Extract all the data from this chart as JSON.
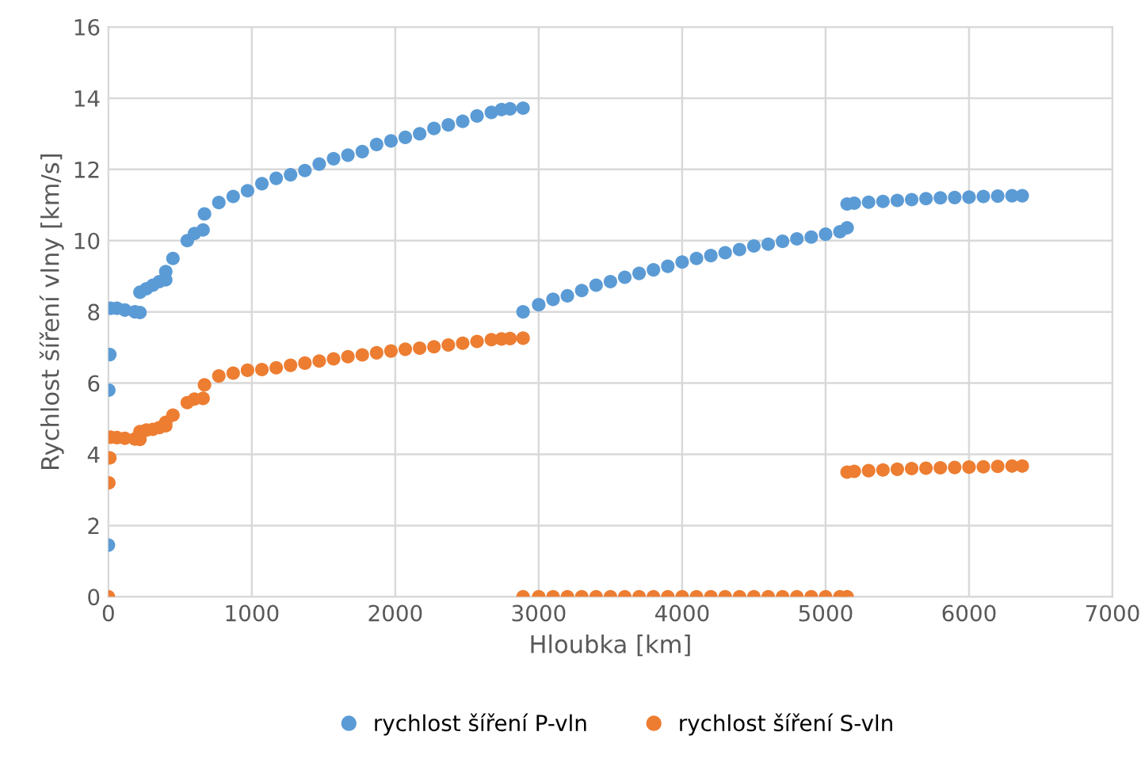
{
  "chart_data": {
    "type": "scatter",
    "xlabel": "Hloubka [km]",
    "ylabel": "Rychlost šíření vlny [km/s]",
    "series": [
      {
        "name": "rychlost šíření P-vln",
        "color": "#5b9bd5",
        "x": [
          0,
          3,
          10,
          15,
          60,
          115,
          185,
          220,
          220,
          265,
          310,
          355,
          400,
          400,
          450,
          550,
          600,
          660,
          670,
          770,
          870,
          970,
          1070,
          1170,
          1270,
          1370,
          1470,
          1570,
          1670,
          1770,
          1870,
          1970,
          2070,
          2170,
          2270,
          2370,
          2470,
          2570,
          2670,
          2741,
          2800,
          2891,
          2891,
          3000,
          3100,
          3200,
          3300,
          3400,
          3500,
          3600,
          3700,
          3800,
          3900,
          4000,
          4100,
          4200,
          4300,
          4400,
          4500,
          4600,
          4700,
          4800,
          4900,
          5000,
          5100,
          5150,
          5150,
          5200,
          5300,
          5400,
          5500,
          5600,
          5700,
          5800,
          5900,
          6000,
          6100,
          6200,
          6300,
          6371
        ],
        "values": [
          1.45,
          5.8,
          6.8,
          8.1,
          8.1,
          8.05,
          8.0,
          7.98,
          8.55,
          8.65,
          8.75,
          8.85,
          8.9,
          9.13,
          9.5,
          10.0,
          10.2,
          10.3,
          10.75,
          11.07,
          11.24,
          11.4,
          11.6,
          11.75,
          11.85,
          11.97,
          12.15,
          12.3,
          12.4,
          12.5,
          12.7,
          12.8,
          12.9,
          13.0,
          13.15,
          13.25,
          13.35,
          13.5,
          13.6,
          13.68,
          13.7,
          13.72,
          8.0,
          8.2,
          8.35,
          8.45,
          8.6,
          8.75,
          8.85,
          8.97,
          9.08,
          9.18,
          9.28,
          9.4,
          9.5,
          9.58,
          9.66,
          9.75,
          9.85,
          9.9,
          9.98,
          10.05,
          10.1,
          10.18,
          10.25,
          10.36,
          11.03,
          11.05,
          11.08,
          11.1,
          11.13,
          11.15,
          11.18,
          11.2,
          11.21,
          11.22,
          11.24,
          11.25,
          11.26,
          11.26
        ]
      },
      {
        "name": "rychlost šíření S-vln",
        "color": "#ed7d31",
        "x": [
          0,
          3,
          10,
          15,
          60,
          115,
          185,
          220,
          220,
          265,
          310,
          355,
          400,
          400,
          450,
          550,
          600,
          660,
          670,
          770,
          870,
          970,
          1070,
          1170,
          1270,
          1370,
          1470,
          1570,
          1670,
          1770,
          1870,
          1970,
          2070,
          2170,
          2270,
          2370,
          2470,
          2570,
          2670,
          2741,
          2800,
          2891,
          2891,
          3000,
          3100,
          3200,
          3300,
          3400,
          3500,
          3600,
          3700,
          3800,
          3900,
          4000,
          4100,
          4200,
          4300,
          4400,
          4500,
          4600,
          4700,
          4800,
          4900,
          5000,
          5100,
          5150,
          5150,
          5200,
          5300,
          5400,
          5500,
          5600,
          5700,
          5800,
          5900,
          6000,
          6100,
          6200,
          6300,
          6371
        ],
        "values": [
          0,
          3.2,
          3.9,
          4.48,
          4.47,
          4.45,
          4.43,
          4.42,
          4.64,
          4.68,
          4.7,
          4.75,
          4.8,
          4.9,
          5.1,
          5.45,
          5.55,
          5.57,
          5.95,
          6.2,
          6.28,
          6.36,
          6.38,
          6.43,
          6.5,
          6.56,
          6.62,
          6.68,
          6.74,
          6.79,
          6.85,
          6.9,
          6.95,
          6.98,
          7.02,
          7.07,
          7.12,
          7.17,
          7.22,
          7.24,
          7.25,
          7.26,
          0,
          0,
          0,
          0,
          0,
          0,
          0,
          0,
          0,
          0,
          0,
          0,
          0,
          0,
          0,
          0,
          0,
          0,
          0,
          0,
          0,
          0,
          0,
          0,
          3.5,
          3.52,
          3.54,
          3.56,
          3.58,
          3.6,
          3.61,
          3.62,
          3.63,
          3.64,
          3.65,
          3.66,
          3.67,
          3.67
        ]
      }
    ],
    "xlim": [
      0,
      7000
    ],
    "xticks": [
      0,
      1000,
      2000,
      3000,
      4000,
      5000,
      6000,
      7000
    ],
    "ylim": [
      0,
      16
    ],
    "yticks": [
      0,
      2,
      4,
      6,
      8,
      10,
      12,
      14,
      16
    ],
    "grid": true,
    "legend": "bottom",
    "marker": "circle"
  }
}
